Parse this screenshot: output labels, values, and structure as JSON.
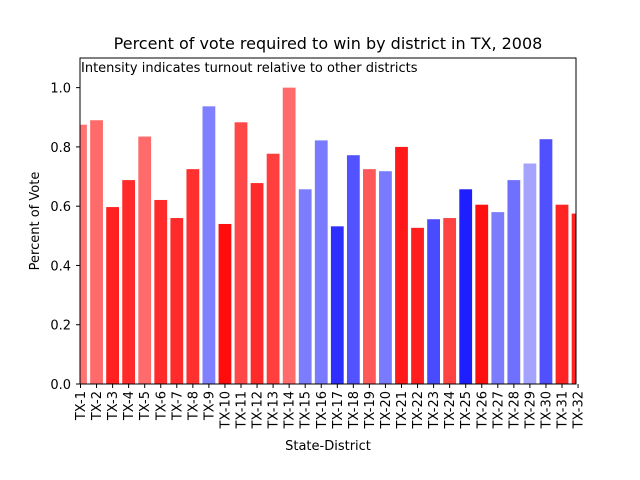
{
  "chart_data": {
    "type": "bar",
    "title": "Percent of vote required to win by district in TX, 2008",
    "annotation": "Intensity indicates turnout relative to other districts",
    "xlabel": "State-District",
    "ylabel": "Percent of Vote",
    "ylim": [
      0,
      1.1
    ],
    "yticks": [
      0.0,
      0.2,
      0.4,
      0.6,
      0.8,
      1.0
    ],
    "ytick_labels": [
      "0.0",
      "0.2",
      "0.4",
      "0.6",
      "0.8",
      "1.0"
    ],
    "grid": false,
    "legend": "none",
    "categories": [
      "TX-1",
      "TX-2",
      "TX-3",
      "TX-4",
      "TX-5",
      "TX-6",
      "TX-7",
      "TX-8",
      "TX-9",
      "TX-10",
      "TX-11",
      "TX-12",
      "TX-13",
      "TX-14",
      "TX-15",
      "TX-16",
      "TX-17",
      "TX-18",
      "TX-19",
      "TX-20",
      "TX-21",
      "TX-22",
      "TX-23",
      "TX-24",
      "TX-25",
      "TX-26",
      "TX-27",
      "TX-28",
      "TX-29",
      "TX-30",
      "TX-31",
      "TX-32"
    ],
    "values": [
      0.875,
      0.89,
      0.597,
      0.688,
      0.835,
      0.621,
      0.56,
      0.725,
      0.937,
      0.54,
      0.883,
      0.678,
      0.777,
      1.0,
      0.657,
      0.822,
      0.532,
      0.772,
      0.725,
      0.718,
      0.8,
      0.527,
      0.556,
      0.56,
      0.657,
      0.605,
      0.58,
      0.688,
      0.744,
      0.826,
      0.605,
      0.575
    ],
    "colors": [
      "#ff7373",
      "#ff6b6b",
      "#ff2020",
      "#ff2a2a",
      "#ff6b6b",
      "#ff2a2a",
      "#ff2a2a",
      "#ff3030",
      "#8080ff",
      "#ff0d0d",
      "#ff4848",
      "#ff2a2a",
      "#ff3e3e",
      "#ff6b6b",
      "#7c7cff",
      "#7a7aff",
      "#2e2eff",
      "#5252ff",
      "#ff5858",
      "#7a7aff",
      "#ff1919",
      "#ff1f1f",
      "#4a4aff",
      "#ff4242",
      "#1e1eff",
      "#ff1010",
      "#7c7cff",
      "#7070ff",
      "#a4a4ff",
      "#5050ff",
      "#ff2424",
      "#ff2424"
    ]
  }
}
